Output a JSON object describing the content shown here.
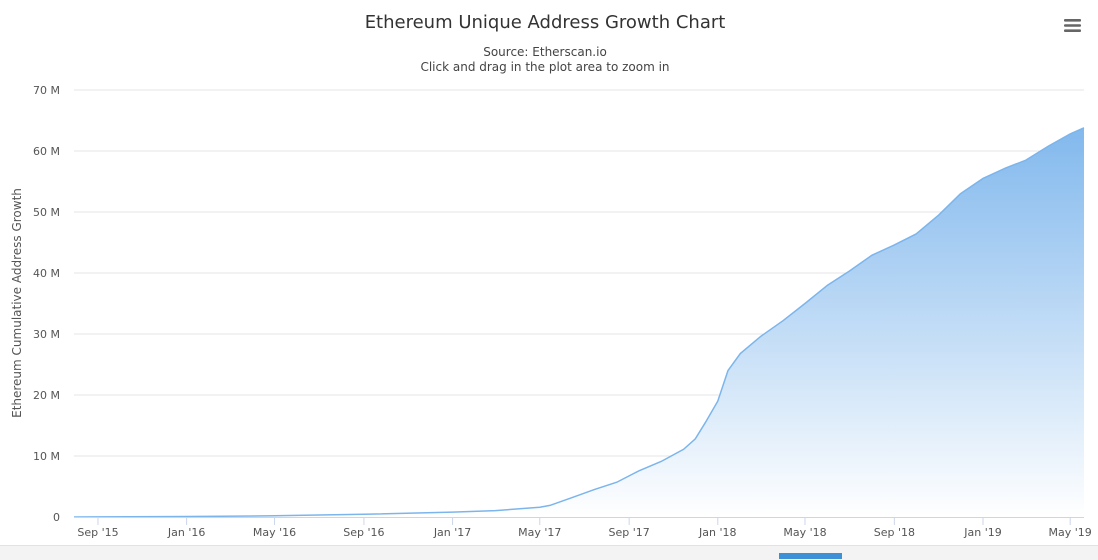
{
  "chart_data": {
    "type": "area",
    "title": "Ethereum Unique Address Growth Chart",
    "subtitle": "Source: Etherscan.io",
    "subtitle2": "Click and drag in the plot area to zoom in",
    "ylabel": "Ethereum Cumulative Address Growth",
    "xlabel": "",
    "ylim": [
      0,
      70000000
    ],
    "xlim": [
      "2015-07-30",
      "2019-05-20"
    ],
    "grid": true,
    "legend": "none",
    "menu_icon": "hamburger-menu-icon",
    "colors": {
      "line": "#7cb5ec",
      "fill_top": "#7cb5ec",
      "fill_bottom": "#ffffff",
      "grid": "#e6e6e6",
      "axis": "#ccd6eb"
    },
    "y_ticks": [
      {
        "value": 0,
        "label": "0"
      },
      {
        "value": 10000000,
        "label": "10 M"
      },
      {
        "value": 20000000,
        "label": "20 M"
      },
      {
        "value": 30000000,
        "label": "30 M"
      },
      {
        "value": 40000000,
        "label": "40 M"
      },
      {
        "value": 50000000,
        "label": "50 M"
      },
      {
        "value": 60000000,
        "label": "60 M"
      },
      {
        "value": 70000000,
        "label": "70 M"
      }
    ],
    "x_ticks": [
      {
        "date": "2015-09-01",
        "label": "Sep '15"
      },
      {
        "date": "2016-01-01",
        "label": "Jan '16"
      },
      {
        "date": "2016-05-01",
        "label": "May '16"
      },
      {
        "date": "2016-09-01",
        "label": "Sep '16"
      },
      {
        "date": "2017-01-01",
        "label": "Jan '17"
      },
      {
        "date": "2017-05-01",
        "label": "May '17"
      },
      {
        "date": "2017-09-01",
        "label": "Sep '17"
      },
      {
        "date": "2018-01-01",
        "label": "Jan '18"
      },
      {
        "date": "2018-05-01",
        "label": "May '18"
      },
      {
        "date": "2018-09-01",
        "label": "Sep '18"
      },
      {
        "date": "2019-01-01",
        "label": "Jan '19"
      },
      {
        "date": "2019-05-01",
        "label": "May '19"
      }
    ],
    "series": [
      {
        "points": [
          [
            "2015-07-30",
            0
          ],
          [
            "2015-09-01",
            20000
          ],
          [
            "2016-01-01",
            80000
          ],
          [
            "2016-05-01",
            200000
          ],
          [
            "2016-09-01",
            450000
          ],
          [
            "2017-01-01",
            800000
          ],
          [
            "2017-03-01",
            1050000
          ],
          [
            "2017-05-01",
            1600000
          ],
          [
            "2017-05-15",
            1900000
          ],
          [
            "2017-06-15",
            3200000
          ],
          [
            "2017-07-15",
            4500000
          ],
          [
            "2017-08-15",
            5700000
          ],
          [
            "2017-09-15",
            7600000
          ],
          [
            "2017-10-15",
            9100000
          ],
          [
            "2017-11-15",
            11100000
          ],
          [
            "2017-12-01",
            12800000
          ],
          [
            "2017-12-15",
            15500000
          ],
          [
            "2018-01-01",
            19000000
          ],
          [
            "2018-01-15",
            24000000
          ],
          [
            "2018-02-01",
            26800000
          ],
          [
            "2018-03-01",
            29600000
          ],
          [
            "2018-04-01",
            32200000
          ],
          [
            "2018-05-01",
            35000000
          ],
          [
            "2018-06-01",
            38000000
          ],
          [
            "2018-07-01",
            40300000
          ],
          [
            "2018-08-01",
            42900000
          ],
          [
            "2018-09-01",
            44600000
          ],
          [
            "2018-10-01",
            46400000
          ],
          [
            "2018-11-01",
            49500000
          ],
          [
            "2018-12-01",
            53000000
          ],
          [
            "2019-01-01",
            55500000
          ],
          [
            "2019-02-01",
            57200000
          ],
          [
            "2019-03-01",
            58500000
          ],
          [
            "2019-04-01",
            60800000
          ],
          [
            "2019-05-01",
            62800000
          ],
          [
            "2019-05-20",
            63800000
          ]
        ]
      }
    ]
  }
}
